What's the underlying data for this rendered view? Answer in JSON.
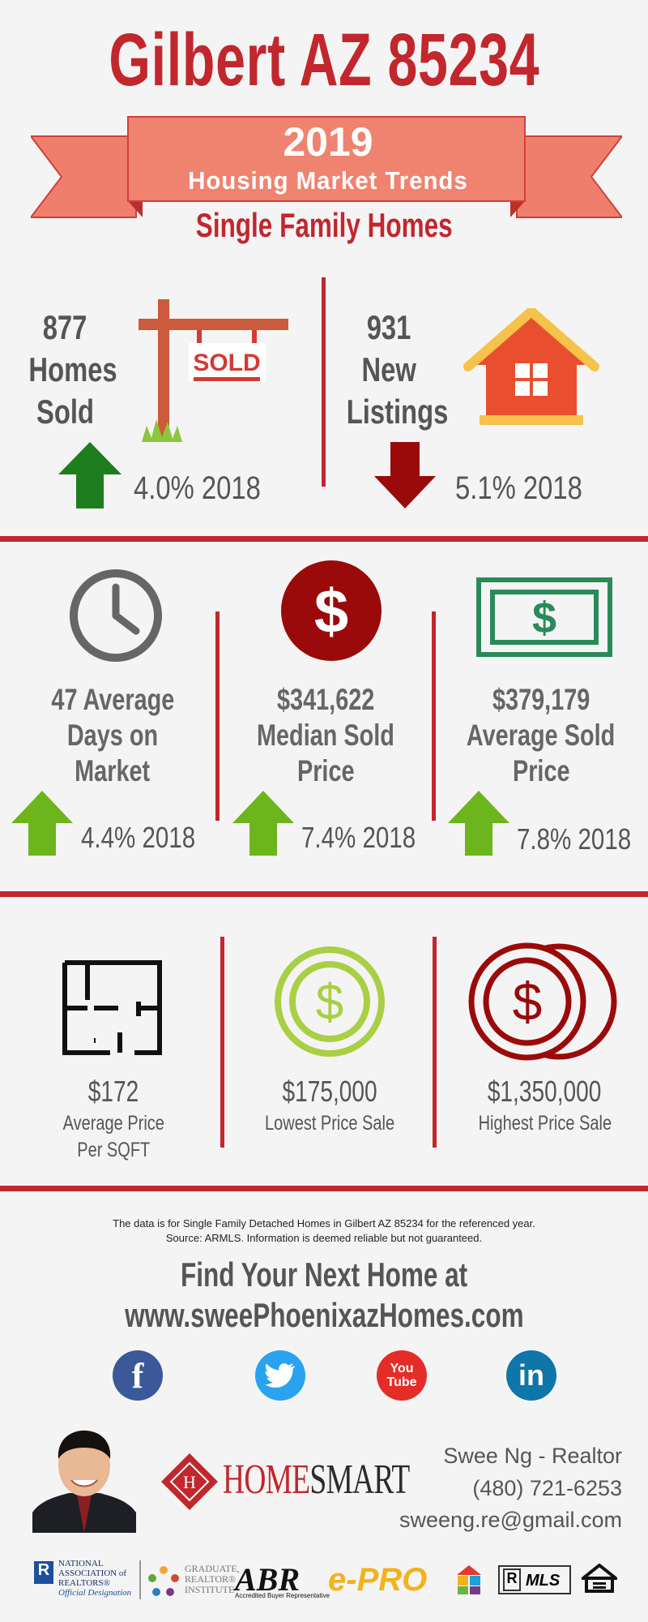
{
  "header": {
    "title": "Gilbert AZ 85234",
    "year": "2019",
    "ribbon_subtitle": "Housing Market Trends",
    "subtitle": "Single Family Homes"
  },
  "row1": {
    "homes_sold": {
      "number": "877",
      "line1": "Homes",
      "line2": "Sold",
      "change": "4.0% 2018",
      "direction": "up",
      "sign_text": "SOLD"
    },
    "new_listings": {
      "number": "931",
      "line1": "New",
      "line2": "Listings",
      "change": "5.1% 2018",
      "direction": "down"
    }
  },
  "row2": {
    "days": {
      "line1": "47 Average",
      "line2": "Days on",
      "line3": "Market",
      "change": "4.4% 2018"
    },
    "median": {
      "line1": "$341,622",
      "line2": "Median Sold",
      "line3": "Price",
      "change": "7.4% 2018"
    },
    "average": {
      "line1": "$379,179",
      "line2": "Average Sold",
      "line3": "Price",
      "change": "7.8% 2018"
    }
  },
  "row3": {
    "sqft": {
      "value": "$172",
      "label1": "Average Price",
      "label2": "Per SQFT"
    },
    "lowest": {
      "value": "$175,000",
      "label1": "Lowest Price Sale"
    },
    "highest": {
      "value": "$1,350,000",
      "label1": "Highest Price Sale"
    }
  },
  "footer": {
    "disclaimer1": "The data is for Single Family Detached Homes in Gilbert AZ 85234 for the referenced year.",
    "disclaimer2": "Source: ARMLS. Information is deemed reliable but not guaranteed.",
    "cta1": "Find Your Next Home at",
    "cta2": "www.sweePhoenixazHomes.com",
    "social": {
      "facebook": "f",
      "youtube1": "You",
      "youtube2": "Tube",
      "linkedin": "in"
    },
    "brand1": "HOME",
    "brand2": "SMART",
    "contact_name": "Swee Ng - Realtor",
    "contact_phone": "(480) 721-6253",
    "contact_email": "sweeng.re@gmail.com",
    "logos": {
      "nar1": "NATIONAL",
      "nar2": "ASSOCIATION of",
      "nar3": "REALTORS®",
      "nar4": "Official Designation",
      "gri1": "GRADUATE,",
      "gri2": "REALTOR®",
      "gri3": "INSTITUTE",
      "abr": "ABR",
      "abr_sub": "Accredited Buyer Representative",
      "epro": "e-PRO",
      "mls": "MLS"
    }
  },
  "colors": {
    "accent_red": "#c1272d",
    "up_green": "#1e7d1e",
    "up_lime": "#6db51c",
    "down_red": "#9b0a0a"
  }
}
